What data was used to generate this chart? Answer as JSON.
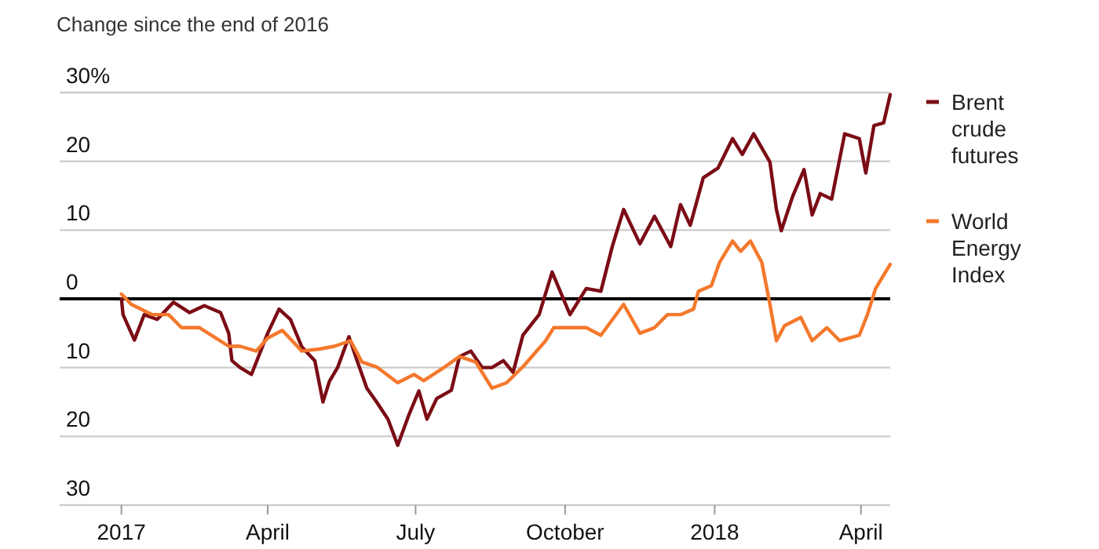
{
  "chart_data": {
    "type": "line",
    "title": "Change since the end of 2016",
    "xlim": [
      "2016-11-24",
      "2018-04-19"
    ],
    "xticks": [
      {
        "value": "2017-01-01",
        "label": "2017"
      },
      {
        "value": "2017-04-01",
        "label": "April"
      },
      {
        "value": "2017-07-01",
        "label": "July"
      },
      {
        "value": "2017-10-01",
        "label": "October"
      },
      {
        "value": "2018-01-01",
        "label": "2018"
      },
      {
        "value": "2018-04-01",
        "label": "April"
      }
    ],
    "ylim": [
      -30,
      30
    ],
    "yticks": [
      {
        "value": 30,
        "label": "30%"
      },
      20,
      10,
      0,
      {
        "value": -10,
        "label": "10"
      },
      {
        "value": -20,
        "label": "20"
      },
      {
        "value": -30,
        "label": "30"
      }
    ],
    "grid": "y",
    "legend": "right",
    "line_style": "solid",
    "ref_lines": [
      {
        "axis": "y",
        "value": 0,
        "color": "#000000"
      }
    ],
    "series": [
      {
        "name": "Brent crude futures",
        "color": "#7b0c15",
        "x": [
          "2017-01-01",
          "2017-01-02",
          "2017-01-09",
          "2017-01-15",
          "2017-01-23",
          "2017-02-02",
          "2017-02-12",
          "2017-02-21",
          "2017-03-03",
          "2017-03-08",
          "2017-03-10",
          "2017-03-15",
          "2017-03-22",
          "2017-03-27",
          "2017-04-01",
          "2017-04-08",
          "2017-04-15",
          "2017-04-22",
          "2017-04-30",
          "2017-05-05",
          "2017-05-09",
          "2017-05-14",
          "2017-05-21",
          "2017-05-26",
          "2017-06-01",
          "2017-06-07",
          "2017-06-14",
          "2017-06-20",
          "2017-06-27",
          "2017-07-03",
          "2017-07-08",
          "2017-07-14",
          "2017-07-23",
          "2017-07-28",
          "2017-08-04",
          "2017-08-11",
          "2017-08-17",
          "2017-08-24",
          "2017-08-30",
          "2017-09-05",
          "2017-09-15",
          "2017-09-23",
          "2017-10-04",
          "2017-10-14",
          "2017-10-23",
          "2017-10-30",
          "2017-11-06",
          "2017-11-16",
          "2017-11-25",
          "2017-12-05",
          "2017-12-11",
          "2017-12-17",
          "2017-12-25",
          "2018-01-03",
          "2018-01-12",
          "2018-01-18",
          "2018-01-25",
          "2018-02-04",
          "2018-02-08",
          "2018-02-11",
          "2018-02-18",
          "2018-02-25",
          "2018-03-02",
          "2018-03-07",
          "2018-03-14",
          "2018-03-22",
          "2018-03-31",
          "2018-04-04",
          "2018-04-09",
          "2018-04-15",
          "2018-04-19"
        ],
        "values": [
          0,
          -2.3,
          -6,
          -2.3,
          -3,
          -0.5,
          -2,
          -1,
          -2,
          -5,
          -9,
          -10,
          -11,
          -8,
          -5,
          -1.5,
          -3,
          -7,
          -9,
          -15,
          -12,
          -10,
          -5.5,
          -9,
          -13,
          -15,
          -17.5,
          -21.3,
          -16.8,
          -13.4,
          -17.5,
          -14.5,
          -13.3,
          -8.4,
          -7.6,
          -10,
          -10,
          -9,
          -10.7,
          -5.3,
          -2.3,
          3.9,
          -2.3,
          1.5,
          1.1,
          7.6,
          13,
          8,
          12,
          7.6,
          13.7,
          10.7,
          17.6,
          19,
          23.3,
          21,
          24,
          19.9,
          13,
          9.9,
          14.9,
          18.8,
          12.2,
          15.3,
          14.5,
          24,
          23.3,
          18.3,
          25.2,
          25.6,
          29.7
        ]
      },
      {
        "name": "World Energy Index",
        "color": "#f4782c",
        "x": [
          "2017-01-01",
          "2017-01-07",
          "2017-01-20",
          "2017-01-30",
          "2017-02-07",
          "2017-02-18",
          "2017-02-28",
          "2017-03-08",
          "2017-03-15",
          "2017-03-25",
          "2017-04-01",
          "2017-04-10",
          "2017-04-22",
          "2017-05-03",
          "2017-05-12",
          "2017-05-22",
          "2017-05-29",
          "2017-06-07",
          "2017-06-20",
          "2017-06-30",
          "2017-07-06",
          "2017-07-19",
          "2017-07-28",
          "2017-08-07",
          "2017-08-17",
          "2017-08-26",
          "2017-09-05",
          "2017-09-19",
          "2017-09-24",
          "2017-10-04",
          "2017-10-14",
          "2017-10-23",
          "2017-11-06",
          "2017-11-16",
          "2017-11-25",
          "2017-12-03",
          "2017-12-11",
          "2017-12-19",
          "2017-12-22",
          "2017-12-30",
          "2018-01-04",
          "2018-01-12",
          "2018-01-17",
          "2018-01-23",
          "2018-01-30",
          "2018-02-04",
          "2018-02-08",
          "2018-02-13",
          "2018-02-23",
          "2018-03-02",
          "2018-03-11",
          "2018-03-19",
          "2018-03-31",
          "2018-04-05",
          "2018-04-10",
          "2018-04-19"
        ],
        "values": [
          0.7,
          -0.8,
          -2.3,
          -2.3,
          -4.2,
          -4.2,
          -5.7,
          -6.9,
          -6.9,
          -7.6,
          -5.7,
          -4.6,
          -7.6,
          -7.3,
          -6.9,
          -6.1,
          -9.2,
          -9.9,
          -12.2,
          -11,
          -11.9,
          -9.9,
          -8.4,
          -9.2,
          -13,
          -12.2,
          -9.9,
          -6.1,
          -4.2,
          -4.2,
          -4.2,
          -5.3,
          -0.8,
          -5,
          -4.2,
          -2.3,
          -2.3,
          -1.5,
          1.1,
          1.9,
          5.3,
          8.4,
          6.9,
          8.4,
          5.3,
          -0.8,
          -6.1,
          -3.9,
          -2.7,
          -6.1,
          -4.2,
          -6.1,
          -5.3,
          -2.3,
          1.5,
          5
        ]
      }
    ]
  }
}
